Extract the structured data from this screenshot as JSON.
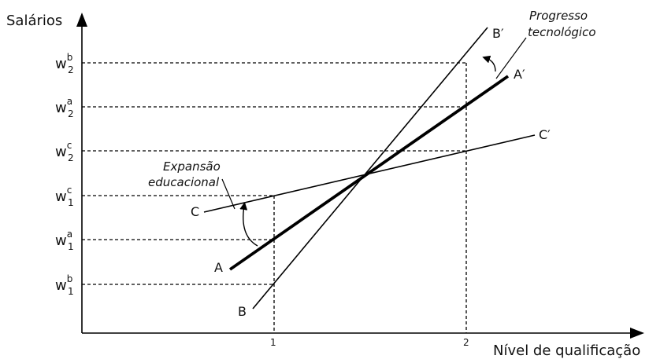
{
  "axes": {
    "y_title": "Salários",
    "x_title": "Nível de qualificação"
  },
  "x_ticks": [
    "1",
    "2"
  ],
  "y_levels": [
    {
      "base": "w",
      "sup": "b",
      "sub": "2"
    },
    {
      "base": "w",
      "sup": "a",
      "sub": "2"
    },
    {
      "base": "w",
      "sup": "c",
      "sub": "2"
    },
    {
      "base": "w",
      "sup": "c",
      "sub": "1"
    },
    {
      "base": "w",
      "sup": "a",
      "sub": "1"
    },
    {
      "base": "w",
      "sup": "b",
      "sub": "1"
    }
  ],
  "lines": {
    "A": {
      "start": "A",
      "end": "A′"
    },
    "B": {
      "start": "B",
      "end": "B′"
    },
    "C": {
      "start": "C",
      "end": "C′"
    }
  },
  "annotations": {
    "progress_line1": "Progresso",
    "progress_line2": "tecnológico",
    "expansion_line1": "Expansão",
    "expansion_line2": "educacional"
  }
}
